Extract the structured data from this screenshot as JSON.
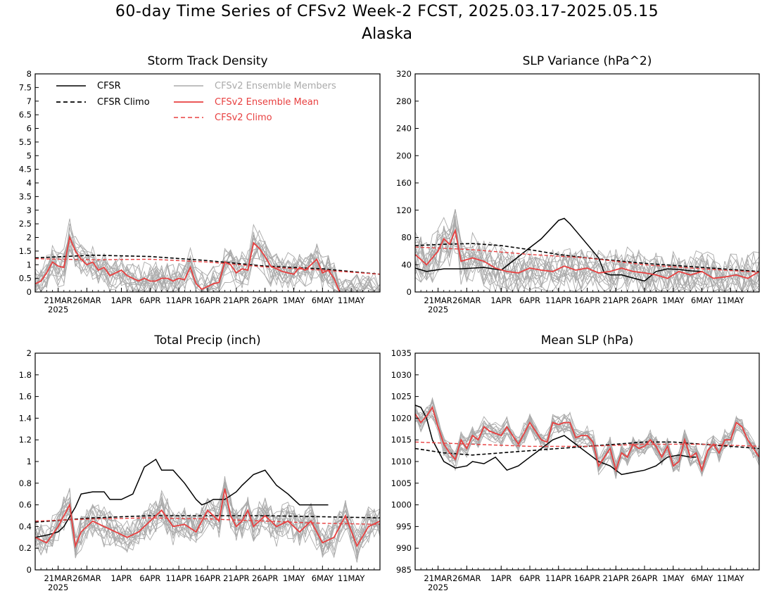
{
  "title": "60-day Time Series of CFSv2 Week-2 FCST, 2025.03.17-2025.05.15",
  "subtitle": "Alaska",
  "colors": {
    "cfsr": "#000000",
    "members": "#aaaaaa",
    "ens_mean": "#e84040",
    "cfsv2_climo": "#e84040"
  },
  "x_ticks": {
    "start_date": "2025-03-17",
    "labels": [
      "21MAR",
      "26MAR",
      "1APR",
      "6APR",
      "11APR",
      "16APR",
      "21APR",
      "26APR",
      "1MAY",
      "6MAY",
      "11MAY"
    ],
    "dates": [
      "2025-03-21",
      "2025-03-26",
      "2025-04-01",
      "2025-04-06",
      "2025-04-11",
      "2025-04-16",
      "2025-04-21",
      "2025-04-26",
      "2025-05-01",
      "2025-05-06",
      "2025-05-11"
    ],
    "year_label": "2025"
  },
  "legend": {
    "cfsr": "CFSR",
    "cfsr_climo": "CFSR Climo",
    "members": "CFSv2 Ensemble Members",
    "ens_mean": "CFSv2 Ensemble Mean",
    "cfsv2_climo": "CFSv2 Climo"
  },
  "chart_data": [
    {
      "type": "line",
      "title": "Storm Track Density",
      "ylim": [
        0,
        8
      ],
      "yticks": [
        "0",
        "0.5",
        "1",
        "1.5",
        "2",
        "2.5",
        "3",
        "3.5",
        "4",
        "4.5",
        "5",
        "5.5",
        "6",
        "6.5",
        "7",
        "7.5",
        "8"
      ],
      "series": [
        {
          "name": "CFSR Climo",
          "day": [
            0,
            10,
            20,
            30,
            40,
            50,
            60
          ],
          "values": [
            1.25,
            1.35,
            1.3,
            1.15,
            0.95,
            0.85,
            0.65
          ]
        },
        {
          "name": "CFSv2 Climo",
          "day": [
            0,
            10,
            20,
            30,
            40,
            50,
            60
          ],
          "values": [
            1.22,
            1.18,
            1.2,
            1.1,
            0.92,
            0.8,
            0.65
          ]
        },
        {
          "name": "CFSv2 Ensemble Mean",
          "day": [
            0,
            1,
            2,
            3,
            4,
            5,
            6,
            7,
            8,
            9,
            10,
            11,
            12,
            13,
            14,
            15,
            16,
            17,
            18,
            19,
            20,
            21,
            22,
            23,
            24,
            25,
            26,
            27,
            28,
            29,
            30,
            31,
            32,
            33,
            34,
            35,
            36,
            37,
            38,
            39,
            40,
            41,
            42,
            43,
            44,
            45,
            46,
            47,
            48,
            49,
            50,
            51,
            52,
            53
          ],
          "values": [
            0.3,
            0.4,
            0.7,
            1.1,
            0.95,
            0.9,
            2.0,
            1.5,
            1.2,
            1.0,
            1.1,
            0.8,
            0.9,
            0.6,
            0.7,
            0.8,
            0.6,
            0.5,
            0.4,
            0.5,
            0.4,
            0.4,
            0.5,
            0.5,
            0.4,
            0.5,
            0.45,
            0.9,
            0.3,
            0.1,
            0.2,
            0.3,
            0.35,
            1.1,
            1.0,
            0.7,
            0.85,
            0.8,
            1.8,
            1.6,
            1.3,
            0.95,
            0.85,
            0.75,
            0.7,
            0.65,
            0.9,
            0.8,
            1.0,
            1.2,
            0.7,
            0.8,
            0.5,
            0.0
          ]
        }
      ]
    },
    {
      "type": "line",
      "title": "SLP Variance (hPa^2)",
      "ylim": [
        0,
        320
      ],
      "yticks": [
        "0",
        "40",
        "80",
        "120",
        "160",
        "200",
        "240",
        "280",
        "320"
      ],
      "series": [
        {
          "name": "CFSR",
          "day": [
            0,
            2,
            5,
            8,
            12,
            15,
            17,
            20,
            22,
            25,
            26,
            27,
            28,
            30,
            32,
            33,
            34,
            36,
            40,
            42,
            44,
            46,
            48,
            50
          ],
          "values": [
            35,
            30,
            34,
            34,
            36,
            32,
            45,
            65,
            78,
            105,
            108,
            100,
            90,
            70,
            50,
            28,
            25,
            25,
            16,
            30,
            34,
            33,
            31,
            30
          ]
        },
        {
          "name": "CFSR Climo",
          "day": [
            0,
            5,
            10,
            15,
            20,
            25,
            30,
            35,
            40,
            45,
            50,
            55,
            60
          ],
          "values": [
            68,
            70,
            71,
            68,
            62,
            55,
            50,
            46,
            42,
            39,
            36,
            33,
            30
          ]
        },
        {
          "name": "CFSv2 Climo",
          "day": [
            0,
            10,
            20,
            30,
            40,
            50,
            60
          ],
          "values": [
            66,
            62,
            55,
            50,
            40,
            34,
            29
          ]
        },
        {
          "name": "CFSv2 Ensemble Mean",
          "day": [
            0,
            2,
            4,
            5,
            6,
            7,
            8,
            10,
            12,
            14,
            16,
            18,
            20,
            22,
            24,
            26,
            28,
            30,
            32,
            34,
            36,
            38,
            40,
            42,
            44,
            46,
            48,
            50,
            52,
            54,
            56,
            58,
            60
          ],
          "values": [
            55,
            40,
            60,
            78,
            70,
            90,
            45,
            50,
            45,
            35,
            30,
            28,
            35,
            32,
            30,
            38,
            32,
            35,
            28,
            30,
            35,
            30,
            28,
            25,
            20,
            30,
            25,
            30,
            20,
            22,
            25,
            20,
            30
          ]
        }
      ]
    },
    {
      "type": "line",
      "title": "Total Precip (inch)",
      "ylim": [
        0,
        2
      ],
      "yticks": [
        "0",
        "0.2",
        "0.4",
        "0.6",
        "0.8",
        "1",
        "1.2",
        "1.4",
        "1.6",
        "1.8",
        "2"
      ],
      "series": [
        {
          "name": "CFSR",
          "day": [
            0,
            2,
            4,
            5,
            7,
            8,
            10,
            12,
            13,
            15,
            17,
            19,
            21,
            22,
            24,
            26,
            28,
            29,
            30,
            31,
            33,
            35,
            36,
            38,
            40,
            42,
            44,
            46,
            48,
            50,
            51
          ],
          "values": [
            0.3,
            0.32,
            0.35,
            0.4,
            0.58,
            0.7,
            0.72,
            0.72,
            0.65,
            0.65,
            0.7,
            0.95,
            1.02,
            0.92,
            0.92,
            0.8,
            0.65,
            0.6,
            0.62,
            0.65,
            0.65,
            0.72,
            0.78,
            0.88,
            0.92,
            0.78,
            0.7,
            0.6,
            0.6,
            0.6,
            0.6
          ]
        },
        {
          "name": "CFSR Climo",
          "day": [
            0,
            10,
            20,
            30,
            40,
            50,
            60
          ],
          "values": [
            0.44,
            0.48,
            0.5,
            0.5,
            0.5,
            0.49,
            0.48
          ]
        },
        {
          "name": "CFSv2 Climo",
          "day": [
            0,
            10,
            20,
            30,
            40,
            50,
            60
          ],
          "values": [
            0.45,
            0.47,
            0.48,
            0.47,
            0.45,
            0.43,
            0.42
          ]
        },
        {
          "name": "CFSv2 Ensemble Mean",
          "day": [
            0,
            2,
            4,
            6,
            7,
            8,
            10,
            12,
            14,
            16,
            18,
            20,
            22,
            24,
            26,
            28,
            30,
            32,
            33,
            34,
            35,
            36,
            37,
            38,
            40,
            42,
            44,
            46,
            48,
            50,
            52,
            54,
            56,
            58,
            60
          ],
          "values": [
            0.3,
            0.25,
            0.4,
            0.6,
            0.22,
            0.35,
            0.45,
            0.4,
            0.35,
            0.3,
            0.35,
            0.45,
            0.55,
            0.4,
            0.42,
            0.35,
            0.55,
            0.45,
            0.75,
            0.5,
            0.4,
            0.45,
            0.55,
            0.4,
            0.5,
            0.4,
            0.45,
            0.35,
            0.45,
            0.25,
            0.3,
            0.5,
            0.22,
            0.4,
            0.45
          ]
        }
      ]
    },
    {
      "type": "line",
      "title": "Mean SLP (hPa)",
      "ylim": [
        985,
        1035
      ],
      "yticks": [
        "985",
        "990",
        "995",
        "1000",
        "1005",
        "1010",
        "1015",
        "1020",
        "1025",
        "1030",
        "1035"
      ],
      "series": [
        {
          "name": "CFSR",
          "day": [
            0,
            1,
            2,
            3,
            5,
            7,
            9,
            10,
            12,
            14,
            16,
            18,
            20,
            22,
            24,
            26,
            28,
            30,
            32,
            34,
            36,
            38,
            40,
            42,
            44,
            46,
            48,
            49
          ],
          "values": [
            1023,
            1022.5,
            1020,
            1015,
            1010,
            1008.5,
            1009,
            1010,
            1009.5,
            1011,
            1008,
            1009,
            1011,
            1013,
            1015,
            1016,
            1014,
            1012,
            1010,
            1009,
            1007,
            1007.5,
            1008,
            1009,
            1011,
            1011.5,
            1011,
            1011
          ]
        },
        {
          "name": "CFSR Climo",
          "day": [
            0,
            5,
            10,
            15,
            20,
            25,
            30,
            35,
            40,
            45,
            50,
            55,
            60
          ],
          "values": [
            1013,
            1012,
            1011.5,
            1012,
            1012.5,
            1013,
            1013.5,
            1014,
            1014.5,
            1014.5,
            1014,
            1013.5,
            1013
          ]
        },
        {
          "name": "CFSv2 Climo",
          "day": [
            0,
            10,
            20,
            30,
            40,
            50,
            60
          ],
          "values": [
            1014.5,
            1014,
            1013.5,
            1013.5,
            1014,
            1014,
            1013.5
          ]
        },
        {
          "name": "CFSv2 Ensemble Mean",
          "day": [
            0,
            1,
            2,
            3,
            4,
            5,
            6,
            7,
            8,
            9,
            10,
            11,
            12,
            13,
            14,
            15,
            16,
            17,
            18,
            19,
            20,
            21,
            22,
            23,
            24,
            25,
            26,
            27,
            28,
            29,
            30,
            31,
            32,
            33,
            34,
            35,
            36,
            37,
            38,
            39,
            40,
            41,
            42,
            43,
            44,
            45,
            46,
            47,
            48,
            49,
            50,
            51,
            52,
            53,
            54,
            55,
            56,
            57,
            58,
            59,
            60
          ],
          "values": [
            1021,
            1019,
            1020.5,
            1022.5,
            1018,
            1014,
            1012,
            1010.5,
            1015,
            1013,
            1016,
            1015,
            1018,
            1017,
            1016.5,
            1016,
            1018,
            1016,
            1014,
            1016.5,
            1019,
            1017,
            1015,
            1014.5,
            1019,
            1018.5,
            1019,
            1019,
            1015.5,
            1016,
            1016,
            1014.5,
            1009,
            1011,
            1013,
            1008,
            1012,
            1011,
            1014,
            1013,
            1013.5,
            1015,
            1013.5,
            1011,
            1013.5,
            1009,
            1010,
            1015,
            1011,
            1012,
            1008,
            1012.5,
            1014,
            1012,
            1015,
            1015,
            1019,
            1018,
            1015,
            1013,
            1011
          ]
        }
      ]
    }
  ]
}
